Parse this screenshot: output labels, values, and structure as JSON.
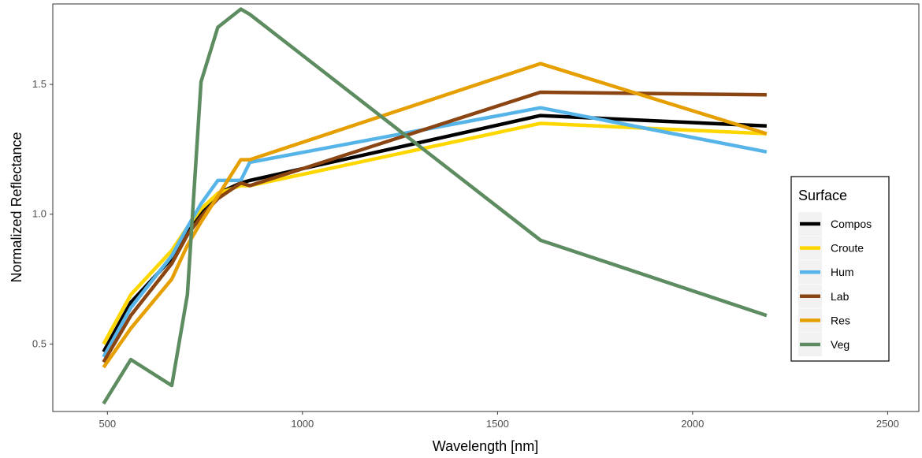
{
  "chart_data": {
    "type": "line",
    "xlabel": "Wavelength [nm]",
    "ylabel": "Normalized Reflectance",
    "xlim": [
      360,
      2580
    ],
    "ylim": [
      0.24,
      1.81
    ],
    "xticks": [
      500,
      1000,
      1500,
      2000,
      2500
    ],
    "yticks": [
      0.5,
      1.0,
      1.5
    ],
    "xtick_labels": [
      "500",
      "1000",
      "1500",
      "2000",
      "2500"
    ],
    "ytick_labels": [
      "0.5",
      "1.0",
      "1.5"
    ],
    "grid": false,
    "legend": {
      "title": "Surface",
      "position": "right"
    },
    "series": [
      {
        "name": "Compos",
        "color": "#000000",
        "x": [
          490,
          560,
          665,
          705,
          740,
          783,
          842,
          865,
          1610,
          2190
        ],
        "y": [
          0.47,
          0.66,
          0.83,
          0.93,
          1.01,
          1.08,
          1.12,
          1.13,
          1.38,
          1.34
        ]
      },
      {
        "name": "Croute",
        "color": "#FFD700",
        "x": [
          490,
          560,
          665,
          705,
          740,
          783,
          842,
          865,
          1610,
          2190
        ],
        "y": [
          0.5,
          0.69,
          0.86,
          0.95,
          1.02,
          1.08,
          1.11,
          1.11,
          1.35,
          1.31
        ]
      },
      {
        "name": "Hum",
        "color": "#56B4E9",
        "x": [
          490,
          560,
          665,
          705,
          740,
          783,
          842,
          865,
          1610,
          2190
        ],
        "y": [
          0.45,
          0.64,
          0.84,
          0.95,
          1.04,
          1.13,
          1.13,
          1.2,
          1.41,
          1.24
        ]
      },
      {
        "name": "Lab",
        "color": "#8B4513",
        "x": [
          490,
          560,
          665,
          705,
          740,
          783,
          842,
          865,
          1610,
          2190
        ],
        "y": [
          0.43,
          0.61,
          0.81,
          0.92,
          0.99,
          1.06,
          1.12,
          1.11,
          1.47,
          1.46
        ]
      },
      {
        "name": "Res",
        "color": "#E69F00",
        "x": [
          490,
          560,
          665,
          705,
          740,
          783,
          842,
          865,
          1610,
          2190
        ],
        "y": [
          0.41,
          0.56,
          0.75,
          0.88,
          0.97,
          1.07,
          1.21,
          1.21,
          1.58,
          1.31
        ]
      },
      {
        "name": "Veg",
        "color": "#5E8C61",
        "x": [
          490,
          560,
          665,
          705,
          740,
          783,
          842,
          865,
          1610,
          2190
        ],
        "y": [
          0.27,
          0.44,
          0.34,
          0.69,
          1.51,
          1.72,
          1.79,
          1.77,
          0.9,
          0.61
        ]
      }
    ]
  }
}
